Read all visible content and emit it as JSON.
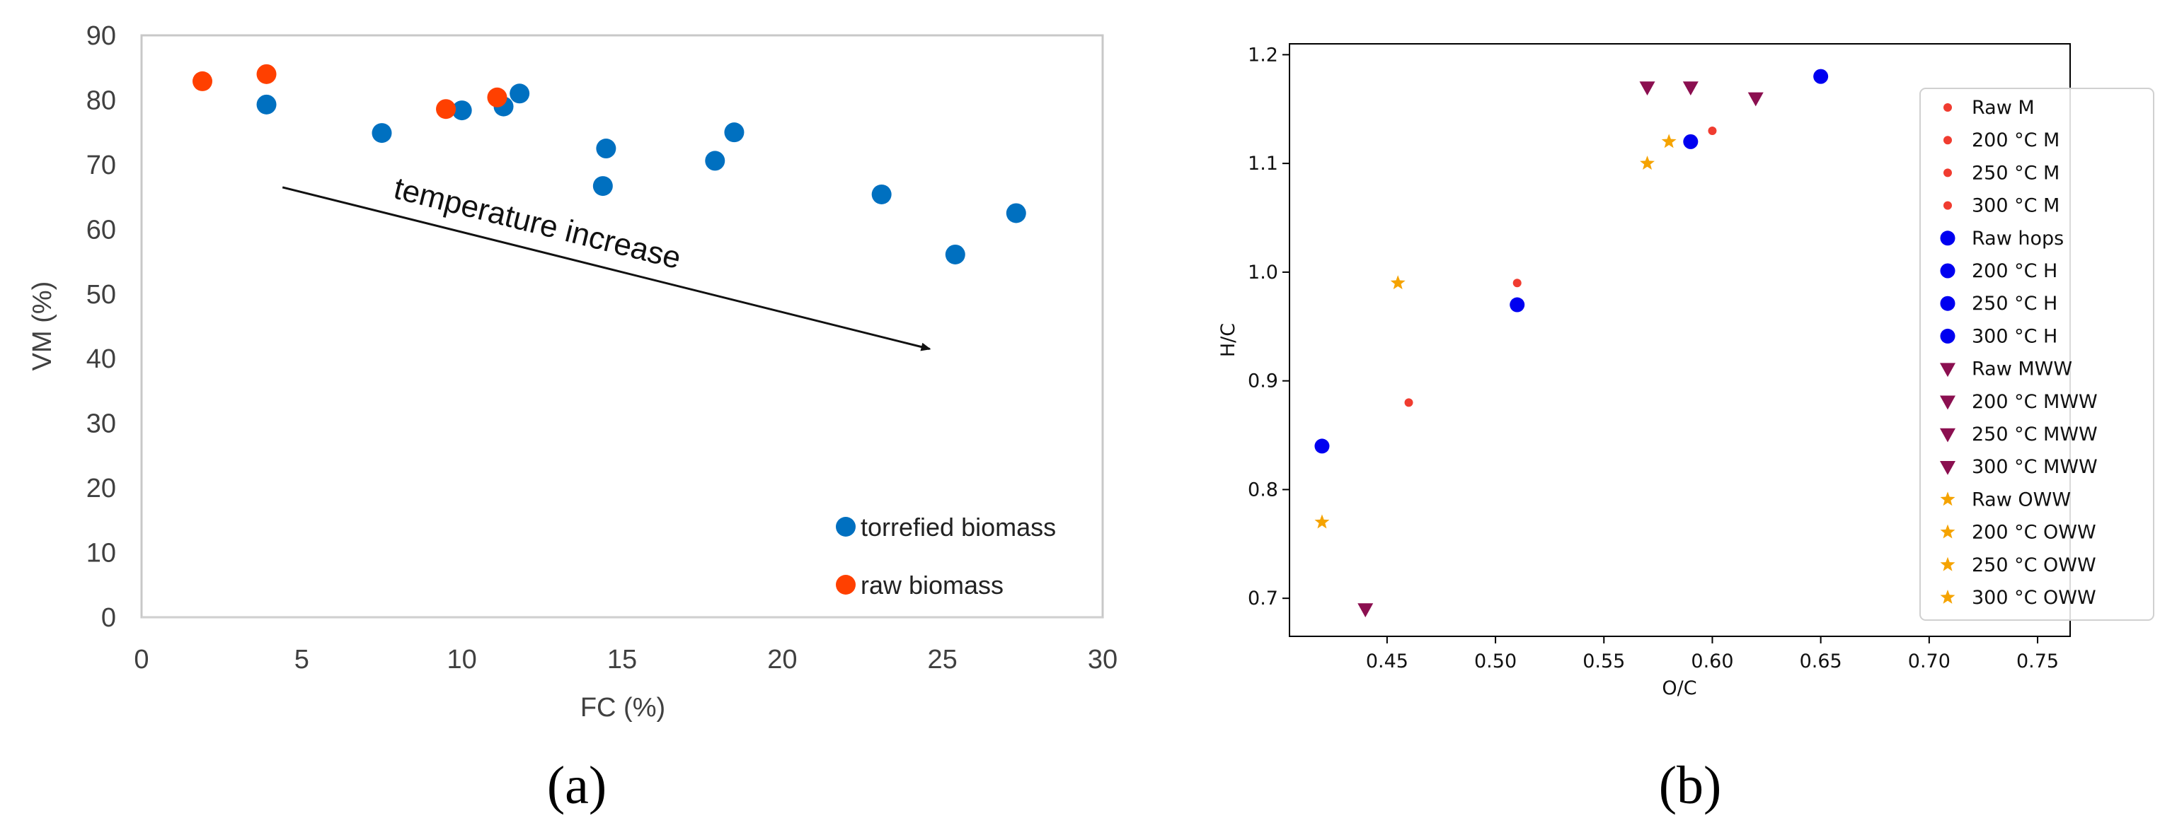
{
  "chart_data": [
    {
      "id": "a",
      "type": "scatter",
      "panel_label": "(a)",
      "xlabel": "FC (%)",
      "ylabel": "VM (%)",
      "xlim": [
        0,
        30
      ],
      "ylim": [
        0,
        90
      ],
      "xticks": [
        "0",
        "5",
        "10",
        "15",
        "20",
        "25",
        "30"
      ],
      "yticks": [
        "0",
        "10",
        "20",
        "30",
        "40",
        "50",
        "60",
        "70",
        "80",
        "90"
      ],
      "grid": false,
      "legend_position": "bottom-right",
      "annotation": {
        "text": "temperature increase",
        "arrow_from": [
          4.4,
          66.5
        ],
        "arrow_to": [
          24.6,
          41.5
        ]
      },
      "series": [
        {
          "name": "torrefied biomass",
          "color": "#0070C0",
          "points": [
            [
              3.9,
              79.3
            ],
            [
              7.5,
              74.9
            ],
            [
              10.0,
              78.4
            ],
            [
              11.3,
              79.0
            ],
            [
              11.8,
              81.0
            ],
            [
              14.4,
              66.7
            ],
            [
              14.5,
              72.5
            ],
            [
              17.9,
              70.6
            ],
            [
              18.5,
              75.0
            ],
            [
              23.1,
              65.4
            ],
            [
              25.4,
              56.1
            ],
            [
              27.3,
              62.5
            ]
          ]
        },
        {
          "name": "raw biomass",
          "color": "#FF4000",
          "points": [
            [
              1.9,
              82.9
            ],
            [
              3.9,
              84.0
            ],
            [
              9.5,
              78.6
            ],
            [
              11.1,
              80.4
            ]
          ]
        }
      ]
    },
    {
      "id": "b",
      "type": "scatter",
      "panel_label": "(b)",
      "xlabel": "O/C",
      "ylabel": "H/C",
      "xlim": [
        0.405,
        0.765
      ],
      "ylim": [
        0.665,
        1.21
      ],
      "xticks": [
        "0.45",
        "0.50",
        "0.55",
        "0.60",
        "0.65",
        "0.70",
        "0.75"
      ],
      "yticks": [
        "0.7",
        "0.8",
        "0.9",
        "1.0",
        "1.1",
        "1.2"
      ],
      "grid": false,
      "legend_position": "right",
      "series": [
        {
          "name": "Raw M",
          "legend_label": " Raw M",
          "group": "M",
          "marker": "smallcircle",
          "color": "#F03C30",
          "points": [
            [
              0.46,
              0.88
            ]
          ]
        },
        {
          "name": "200 °C M",
          "legend_label": "200 °C M",
          "group": "M",
          "marker": "smallcircle",
          "color": "#F03C30",
          "points": [
            [
              0.51,
              0.99
            ]
          ]
        },
        {
          "name": "250 °C M",
          "legend_label": "250 °C M",
          "group": "M",
          "marker": "smallcircle",
          "color": "#F03C30",
          "points": [
            [
              0.6,
              1.13
            ]
          ]
        },
        {
          "name": "300 °C M",
          "legend_label": "300 °C M",
          "group": "M",
          "marker": "smallcircle",
          "color": "#F03C30",
          "points": []
        },
        {
          "name": "Raw hops",
          "legend_label": "Raw hops",
          "group": "H",
          "marker": "circle",
          "color": "#0000F0",
          "points": [
            [
              0.42,
              0.84
            ]
          ]
        },
        {
          "name": "200 °C H",
          "legend_label": "200 °C H",
          "group": "H",
          "marker": "circle",
          "color": "#0000F0",
          "points": [
            [
              0.51,
              0.97
            ]
          ]
        },
        {
          "name": "250 °C H",
          "legend_label": "250 °C H",
          "group": "H",
          "marker": "circle",
          "color": "#0000F0",
          "points": [
            [
              0.59,
              1.12
            ]
          ]
        },
        {
          "name": "300 °C H",
          "legend_label": "300 °C H",
          "group": "H",
          "marker": "circle",
          "color": "#0000F0",
          "points": [
            [
              0.65,
              1.18
            ]
          ]
        },
        {
          "name": "Raw MWW",
          "legend_label": "Raw MWW",
          "group": "MWW",
          "marker": "triangle-down",
          "color": "#8B0F50",
          "points": [
            [
              0.44,
              0.69
            ]
          ]
        },
        {
          "name": "200 °C MWW",
          "legend_label": "200 °C MWW",
          "group": "MWW",
          "marker": "triangle-down",
          "color": "#8B0F50",
          "points": [
            [
              0.57,
              1.17
            ]
          ]
        },
        {
          "name": "250 °C MWW",
          "legend_label": "250 °C MWW",
          "group": "MWW",
          "marker": "triangle-down",
          "color": "#8B0F50",
          "points": [
            [
              0.59,
              1.17
            ]
          ]
        },
        {
          "name": "300 °C MWW",
          "legend_label": "300 °C MWW",
          "group": "MWW",
          "marker": "triangle-down",
          "color": "#8B0F50",
          "points": [
            [
              0.62,
              1.16
            ]
          ]
        },
        {
          "name": "Raw OWW",
          "legend_label": "Raw OWW",
          "group": "OWW",
          "marker": "star",
          "color": "#F5A300",
          "points": [
            [
              0.42,
              0.77
            ]
          ]
        },
        {
          "name": "200 °C OWW",
          "legend_label": "200 °C OWW",
          "group": "OWW",
          "marker": "star",
          "color": "#F5A300",
          "points": [
            [
              0.455,
              0.99
            ]
          ]
        },
        {
          "name": "250 °C OWW",
          "legend_label": "250 °C OWW",
          "group": "OWW",
          "marker": "star",
          "color": "#F5A300",
          "points": [
            [
              0.57,
              1.1
            ]
          ]
        },
        {
          "name": "300 °C OWW",
          "legend_label": "300 °C OWW",
          "group": "OWW",
          "marker": "star",
          "color": "#F5A300",
          "points": [
            [
              0.58,
              1.12
            ]
          ]
        }
      ]
    }
  ]
}
